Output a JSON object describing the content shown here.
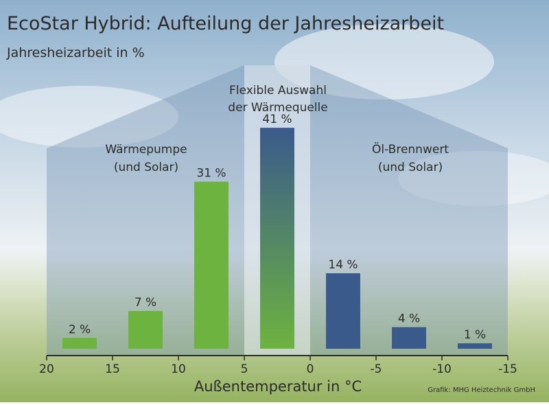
{
  "title": "EcoStar Hybrid: Aufteilung der Jahresheizarbeit",
  "subtitle": "Jahresheizarbeit in %",
  "regions": {
    "left_line1": "Wärmepumpe",
    "left_line2": "(und Solar)",
    "middle_line1": "Flexible Auswahl",
    "middle_line2": "der Wärmequelle",
    "right_line1": "Öl-Brennwert",
    "right_line2": "(und Solar)"
  },
  "credit": "Grafik: MHG Heiztechnik GmbH",
  "colors": {
    "heat_pump": "#6db33f",
    "oil_condensing": "#3a5a8c",
    "text": "#2b2b2b"
  },
  "chart_data": {
    "type": "bar",
    "title": "EcoStar Hybrid: Aufteilung der Jahresheizarbeit",
    "ylabel": "Jahresheizarbeit in %",
    "xlabel": "Außentemperatur in °C",
    "xlim": [
      20,
      -15
    ],
    "xticks": [
      "20",
      "15",
      "10",
      "5",
      "0",
      "-5",
      "-10",
      "-15"
    ],
    "ylim": [
      0,
      45
    ],
    "bars": [
      {
        "x": 17.5,
        "value": 2,
        "label": "2 %",
        "source": "heat_pump"
      },
      {
        "x": 12.5,
        "value": 7,
        "label": "7 %",
        "source": "heat_pump"
      },
      {
        "x": 7.5,
        "value": 31,
        "label": "31 %",
        "source": "heat_pump"
      },
      {
        "x": 2.5,
        "value": 41,
        "label": "41 %",
        "source": "flexible"
      },
      {
        "x": -2.5,
        "value": 14,
        "label": "14 %",
        "source": "oil_condensing"
      },
      {
        "x": -7.5,
        "value": 4,
        "label": "4 %",
        "source": "oil_condensing"
      },
      {
        "x": -12.5,
        "value": 1,
        "label": "1 %",
        "source": "oil_condensing"
      }
    ]
  }
}
